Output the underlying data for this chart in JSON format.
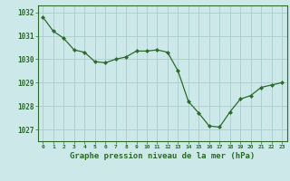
{
  "hours": [
    0,
    1,
    2,
    3,
    4,
    5,
    6,
    7,
    8,
    9,
    10,
    11,
    12,
    13,
    14,
    15,
    16,
    17,
    18,
    19,
    20,
    21,
    22,
    23
  ],
  "pressure": [
    1031.8,
    1031.2,
    1030.9,
    1030.4,
    1030.3,
    1029.9,
    1029.85,
    1030.0,
    1030.1,
    1030.35,
    1030.35,
    1030.4,
    1030.3,
    1029.5,
    1028.2,
    1027.7,
    1027.15,
    1027.1,
    1027.75,
    1028.3,
    1028.45,
    1028.8,
    1028.9,
    1029.0
  ],
  "line_color": "#2d6a2d",
  "marker": "D",
  "marker_size": 2.0,
  "bg_color": "#cce8e8",
  "grid_color": "#aacccc",
  "xlabel": "Graphe pression niveau de la mer (hPa)",
  "xlabel_color": "#2d6a2d",
  "tick_color": "#2d6a2d",
  "ylim": [
    1026.5,
    1032.3
  ],
  "yticks": [
    1027,
    1028,
    1029,
    1030,
    1031,
    1032
  ],
  "xlim": [
    -0.5,
    23.5
  ],
  "xtick_labels": [
    "0",
    "1",
    "2",
    "3",
    "4",
    "5",
    "6",
    "7",
    "8",
    "9",
    "10",
    "11",
    "12",
    "13",
    "14",
    "15",
    "16",
    "17",
    "18",
    "19",
    "20",
    "21",
    "22",
    "23"
  ]
}
